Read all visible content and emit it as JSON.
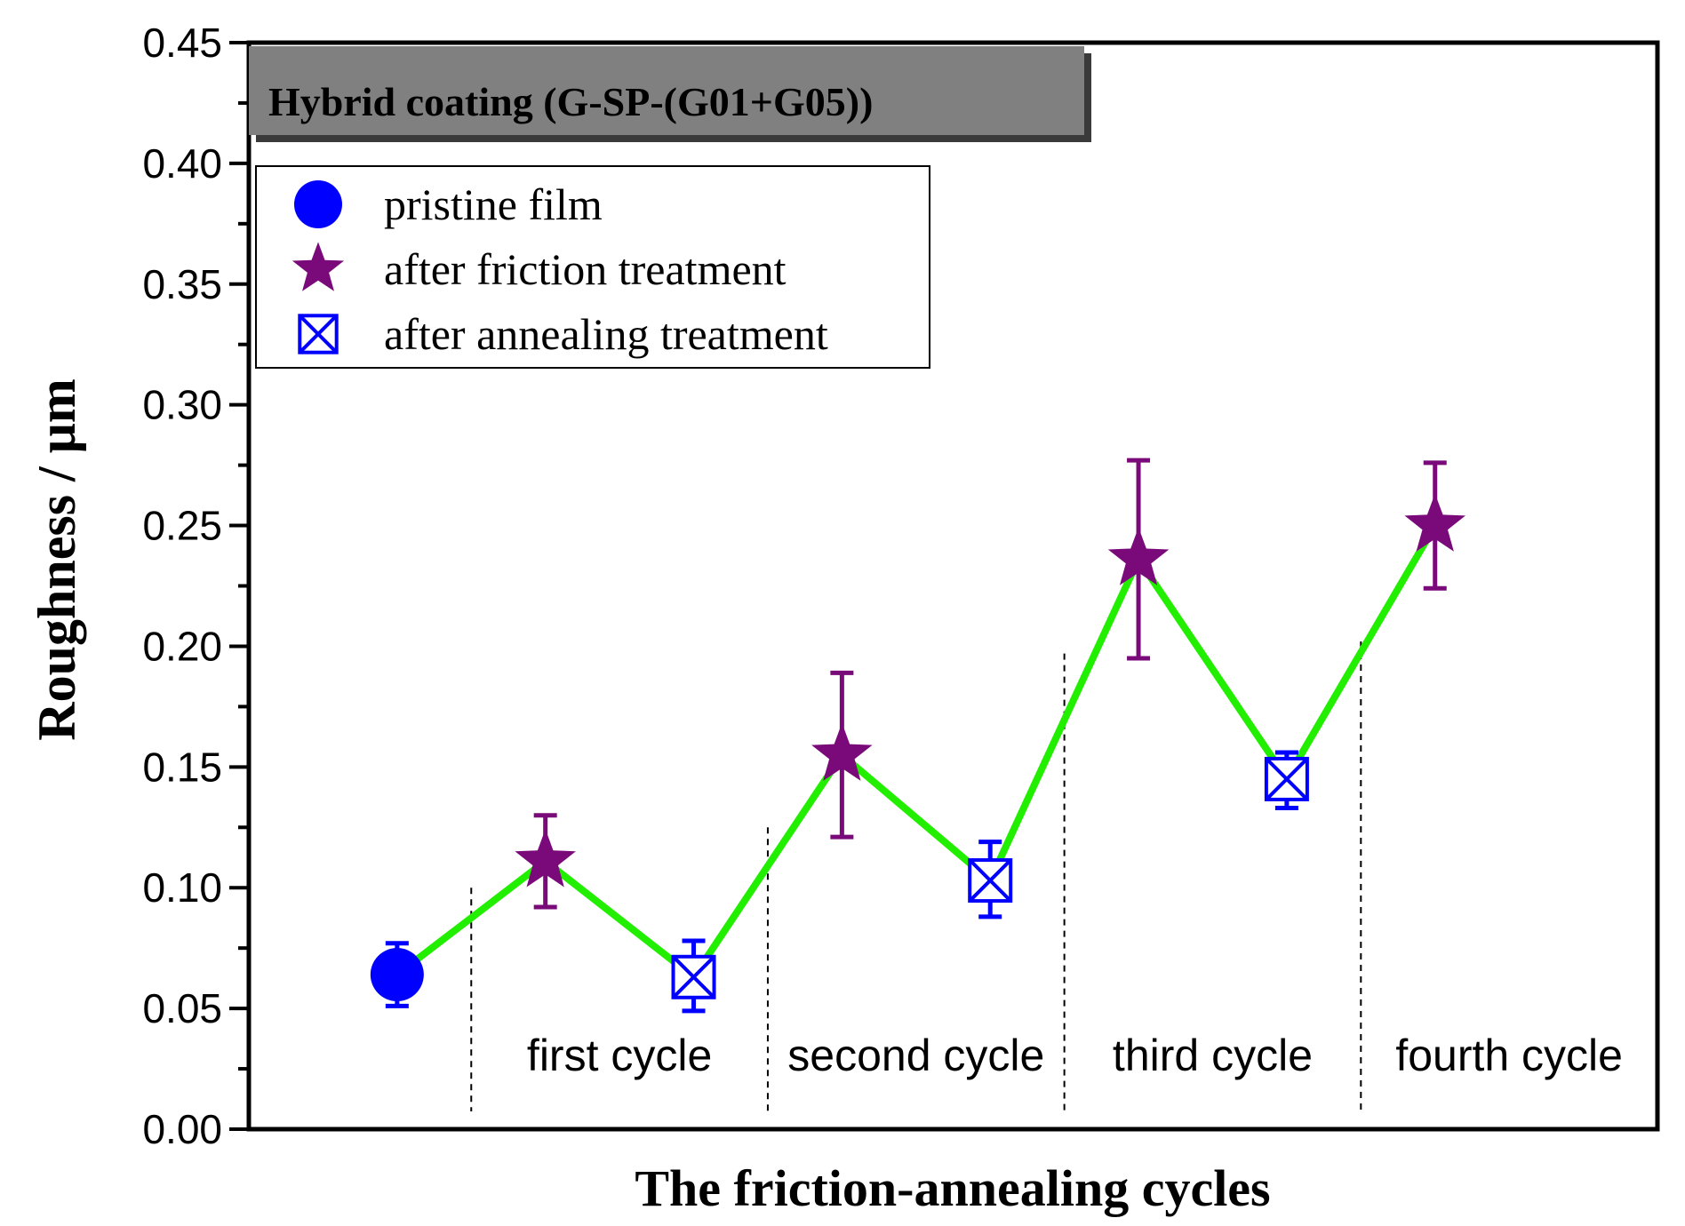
{
  "chart_data": {
    "type": "line",
    "title": "Hybrid coating (G-SP-(G01+G05))",
    "xlabel": "The friction-annealing cycles",
    "ylabel": "Roughness / μm",
    "ylim": [
      0.0,
      0.45
    ],
    "yticks": [
      "0.00",
      "0.05",
      "0.10",
      "0.15",
      "0.20",
      "0.25",
      "0.30",
      "0.35",
      "0.40",
      "0.45"
    ],
    "xlim": [
      0,
      9.5
    ],
    "line_color": "#22ee00",
    "points": [
      {
        "x": 1,
        "y": 0.064,
        "err_low": 0.051,
        "err_high": 0.077,
        "series": "pristine film"
      },
      {
        "x": 2,
        "y": 0.111,
        "err_low": 0.092,
        "err_high": 0.13,
        "series": "after friction treatment"
      },
      {
        "x": 3,
        "y": 0.063,
        "err_low": 0.049,
        "err_high": 0.078,
        "series": "after annealing treatment"
      },
      {
        "x": 4,
        "y": 0.155,
        "err_low": 0.121,
        "err_high": 0.189,
        "series": "after friction treatment"
      },
      {
        "x": 5,
        "y": 0.103,
        "err_low": 0.088,
        "err_high": 0.119,
        "series": "after annealing treatment"
      },
      {
        "x": 6,
        "y": 0.236,
        "err_low": 0.195,
        "err_high": 0.277,
        "series": "after friction treatment"
      },
      {
        "x": 7,
        "y": 0.145,
        "err_low": 0.133,
        "err_high": 0.156,
        "series": "after annealing treatment"
      },
      {
        "x": 8,
        "y": 0.25,
        "err_low": 0.224,
        "err_high": 0.276,
        "series": "after friction treatment"
      }
    ],
    "series": [
      {
        "name": "pristine film",
        "marker": "circle",
        "color": "#0000ff"
      },
      {
        "name": "after friction treatment",
        "marker": "star",
        "color": "#7a0a7a"
      },
      {
        "name": "after annealing treatment",
        "marker": "crossed-square",
        "color": "#0000ff"
      }
    ],
    "cycles": [
      {
        "label": "first cycle",
        "x_start": 1.5,
        "x_end": 3.5
      },
      {
        "label": "second cycle",
        "x_start": 3.5,
        "x_end": 5.5
      },
      {
        "label": "third cycle",
        "x_start": 5.5,
        "x_end": 7.5
      },
      {
        "label": "fourth cycle",
        "x_start": 7.5,
        "x_end": 9.5
      }
    ],
    "divider_tops": [
      0.1,
      0.125,
      0.197,
      0.202
    ],
    "legend_position": "top-left"
  }
}
